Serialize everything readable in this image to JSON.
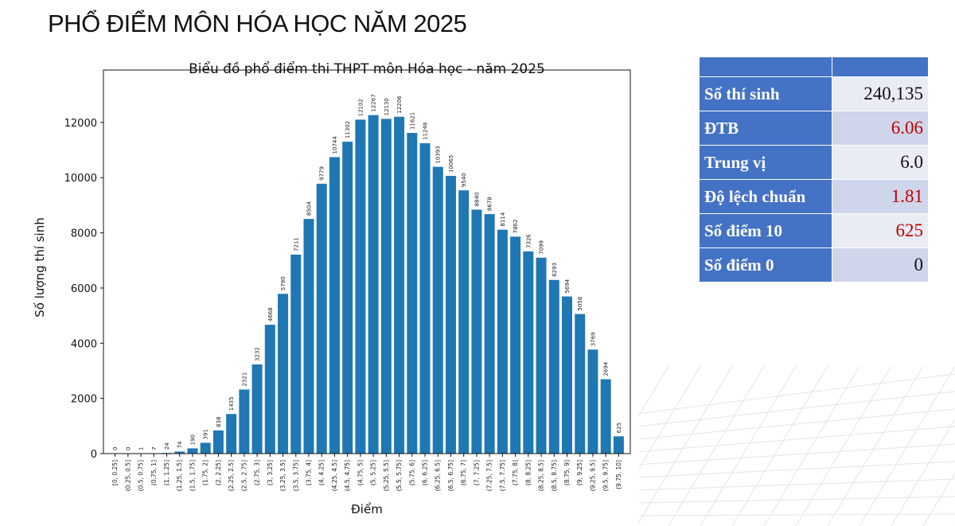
{
  "page_title": "PHỔ ĐIỂM MÔN HÓA HỌC NĂM 2025",
  "stats_table": {
    "header": [
      "",
      ""
    ],
    "rows": [
      {
        "label": "Số thí sinh",
        "value": "240,135",
        "color": "#111111"
      },
      {
        "label": "ĐTB",
        "value": "6.06",
        "color": "#c00000"
      },
      {
        "label": "Trung vị",
        "value": "6.0",
        "color": "#111111"
      },
      {
        "label": "Độ lệch chuẩn",
        "value": "1.81",
        "color": "#c00000"
      },
      {
        "label": "Số điểm 10",
        "value": "625",
        "color": "#c00000"
      },
      {
        "label": "Số điểm 0",
        "value": "0",
        "color": "#111111"
      }
    ]
  },
  "chart_data": {
    "type": "bar",
    "title": "Biểu đồ phổ điểm thi THPT môn Hóa học - năm 2025",
    "xlabel": "Điểm",
    "ylabel": "Số lượng thí sinh",
    "ylim": [
      0,
      13900
    ],
    "yticks": [
      0,
      2000,
      4000,
      6000,
      8000,
      10000,
      12000
    ],
    "bar_color": "#1f77b4",
    "grid": false,
    "categories": [
      "[0, 0.25]",
      "(0.25, 0.5]",
      "(0.5, 0.75]",
      "(0.75, 1]",
      "(1, 1.25]",
      "(1.25, 1.5]",
      "(1.5, 1.75]",
      "(1.75, 2]",
      "(2, 2.25]",
      "(2.25, 2.5]",
      "(2.5, 2.75]",
      "(2.75, 3]",
      "(3, 3.25]",
      "(3.25, 3.5]",
      "(3.5, 3.75]",
      "(3.75, 4]",
      "(4, 4.25]",
      "(4.25, 4.5]",
      "(4.5, 4.75]",
      "(4.75, 5]",
      "(5, 5.25]",
      "(5.25, 5.5]",
      "(5.5, 5.75]",
      "(5.75, 6]",
      "(6, 6.25]",
      "(6.25, 6.5]",
      "(6.5, 6.75]",
      "(6.75, 7]",
      "(7, 7.25]",
      "(7.25, 7.5]",
      "(7.5, 7.75]",
      "(7.75, 8]",
      "(8, 8.25]",
      "(8.25, 8.5]",
      "(8.5, 8.75]",
      "(8.75, 9]",
      "(9, 9.25]",
      "(9.25, 9.5]",
      "(9.5, 9.75]",
      "(9.75, 10]"
    ],
    "values": [
      0,
      0,
      1,
      7,
      24,
      74,
      190,
      391,
      838,
      1435,
      2321,
      3232,
      4668,
      5790,
      7211,
      8504,
      9779,
      10744,
      11302,
      12102,
      12267,
      12130,
      12206,
      11621,
      11248,
      10393,
      10065,
      9540,
      8840,
      8678,
      8114,
      7862,
      7326,
      7099,
      6293,
      5694,
      5058,
      3769,
      2694,
      625
    ]
  }
}
